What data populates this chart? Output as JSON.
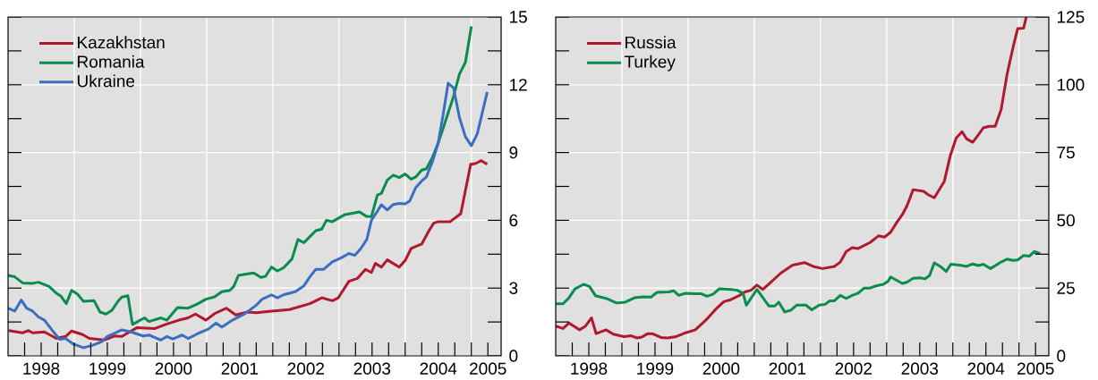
{
  "chart_data": [
    {
      "type": "line",
      "legend": "top left",
      "grid": true,
      "xlim": [
        1998,
        2005.45
      ],
      "ylim": [
        0,
        15
      ],
      "xticks": [
        {
          "value": 1998.25,
          "label": null
        },
        {
          "value": 1998.5,
          "label": "1998"
        },
        {
          "value": 1998.75,
          "label": null
        },
        {
          "value": 1999,
          "label": null
        },
        {
          "value": 1999.25,
          "label": null
        },
        {
          "value": 1999.5,
          "label": "1999"
        },
        {
          "value": 1999.75,
          "label": null
        },
        {
          "value": 2000,
          "label": null
        },
        {
          "value": 2000.25,
          "label": null
        },
        {
          "value": 2000.5,
          "label": "2000"
        },
        {
          "value": 2000.75,
          "label": null
        },
        {
          "value": 2001,
          "label": null
        },
        {
          "value": 2001.25,
          "label": null
        },
        {
          "value": 2001.5,
          "label": "2001"
        },
        {
          "value": 2001.75,
          "label": null
        },
        {
          "value": 2002,
          "label": null
        },
        {
          "value": 2002.25,
          "label": null
        },
        {
          "value": 2002.5,
          "label": "2002"
        },
        {
          "value": 2002.75,
          "label": null
        },
        {
          "value": 2003,
          "label": null
        },
        {
          "value": 2003.25,
          "label": null
        },
        {
          "value": 2003.5,
          "label": "2003"
        },
        {
          "value": 2003.75,
          "label": null
        },
        {
          "value": 2004,
          "label": null
        },
        {
          "value": 2004.25,
          "label": null
        },
        {
          "value": 2004.5,
          "label": "2004"
        },
        {
          "value": 2004.75,
          "label": null
        },
        {
          "value": 2005,
          "label": null
        },
        {
          "value": 2005.25,
          "label": "2005"
        }
      ],
      "yticks": [
        0,
        {
          "value": 1.5,
          "label": null
        },
        3,
        {
          "value": 4.5,
          "label": null
        },
        6,
        {
          "value": 7.5,
          "label": null
        },
        9,
        {
          "value": 10.5,
          "label": null
        },
        12,
        {
          "value": 13.5,
          "label": null
        },
        15
      ],
      "series": [
        {
          "name": "Kazakhstan",
          "color": "#b0182e",
          "x": [
            1998.01,
            1998.22,
            1998.31,
            1998.37,
            1998.55,
            1998.73,
            1998.87,
            1998.96,
            1999.12,
            1999.23,
            1999.45,
            1999.61,
            1999.72,
            1999.95,
            2000.22,
            2000.38,
            2000.58,
            2000.72,
            2000.83,
            2000.99,
            2001.12,
            2001.3,
            2001.44,
            2001.62,
            2001.75,
            2001.98,
            2002.25,
            2002.56,
            2002.74,
            2002.9,
            2002.99,
            2003.15,
            2003.28,
            2003.4,
            2003.49,
            2003.55,
            2003.64,
            2003.73,
            2003.91,
            2004.0,
            2004.09,
            2004.25,
            2004.36,
            2004.43,
            2004.5,
            2004.68,
            2004.84,
            2004.99,
            2005.06,
            2005.15,
            2005.24
          ],
          "values": [
            1.12,
            1.02,
            1.12,
            1.02,
            1.06,
            0.77,
            0.86,
            1.1,
            0.95,
            0.77,
            0.7,
            0.88,
            0.86,
            1.25,
            1.21,
            1.39,
            1.58,
            1.68,
            1.85,
            1.58,
            1.87,
            2.11,
            1.81,
            1.94,
            1.91,
            1.98,
            2.05,
            2.31,
            2.57,
            2.44,
            2.57,
            3.3,
            3.43,
            3.83,
            3.69,
            4.09,
            3.93,
            4.25,
            3.93,
            4.22,
            4.75,
            4.95,
            5.54,
            5.87,
            5.94,
            5.94,
            6.29,
            8.48,
            8.51,
            8.64,
            8.48
          ]
        },
        {
          "name": "Romania",
          "color": "#0a8c4f",
          "x": [
            1998.0,
            1998.1,
            1998.22,
            1998.37,
            1998.46,
            1998.62,
            1998.73,
            1998.8,
            1998.88,
            1998.96,
            1999.05,
            1999.14,
            1999.3,
            1999.39,
            1999.48,
            1999.57,
            1999.66,
            1999.72,
            1999.81,
            1999.88,
            2000.06,
            2000.13,
            2000.31,
            2000.4,
            2000.56,
            2000.72,
            2000.85,
            2000.99,
            2001.12,
            2001.23,
            2001.35,
            2001.41,
            2001.48,
            2001.71,
            2001.82,
            2001.89,
            2001.98,
            2002.07,
            2002.16,
            2002.29,
            2002.38,
            2002.47,
            2002.65,
            2002.74,
            2002.81,
            2002.9,
            2003.08,
            2003.31,
            2003.42,
            2003.49,
            2003.58,
            2003.64,
            2003.73,
            2003.82,
            2003.91,
            2004.0,
            2004.09,
            2004.16,
            2004.25,
            2004.32,
            2004.41,
            2004.5,
            2004.59,
            2004.73,
            2004.82,
            2004.91,
            2005.0
          ],
          "values": [
            3.56,
            3.5,
            3.23,
            3.21,
            3.26,
            3.07,
            2.77,
            2.64,
            2.31,
            2.9,
            2.73,
            2.41,
            2.44,
            1.94,
            1.85,
            2.02,
            2.41,
            2.6,
            2.66,
            1.39,
            1.68,
            1.52,
            1.68,
            1.58,
            2.14,
            2.11,
            2.28,
            2.51,
            2.61,
            2.84,
            2.9,
            3.07,
            3.56,
            3.67,
            3.47,
            3.52,
            3.93,
            3.76,
            3.89,
            4.29,
            5.15,
            5.01,
            5.54,
            5.61,
            6.0,
            5.94,
            6.24,
            6.37,
            6.17,
            6.16,
            7.12,
            7.19,
            7.78,
            8.0,
            7.89,
            8.05,
            7.82,
            7.92,
            8.22,
            8.28,
            8.77,
            9.43,
            10.22,
            11.48,
            12.47,
            12.99,
            14.58
          ]
        },
        {
          "name": "Ukraine",
          "color": "#3a6fbf",
          "x": [
            1998.0,
            1998.1,
            1998.2,
            1998.28,
            1998.37,
            1998.46,
            1998.55,
            1998.67,
            1998.78,
            1998.87,
            1998.98,
            1999.14,
            1999.27,
            1999.41,
            1999.5,
            1999.72,
            1999.86,
            2000.04,
            2000.13,
            2000.31,
            2000.4,
            2000.49,
            2000.63,
            2000.72,
            2000.85,
            2001.03,
            2001.14,
            2001.23,
            2001.39,
            2001.57,
            2001.75,
            2001.84,
            2001.98,
            2002.07,
            2002.16,
            2002.34,
            2002.47,
            2002.56,
            2002.65,
            2002.77,
            2002.9,
            2003.04,
            2003.15,
            2003.24,
            2003.33,
            2003.42,
            2003.49,
            2003.58,
            2003.64,
            2003.73,
            2003.82,
            2003.91,
            2004.0,
            2004.07,
            2004.16,
            2004.25,
            2004.32,
            2004.41,
            2004.5,
            2004.57,
            2004.65,
            2004.73,
            2004.82,
            2004.91,
            2005.0,
            2005.09,
            2005.24
          ],
          "values": [
            2.11,
            1.98,
            2.47,
            2.11,
            1.98,
            1.72,
            1.58,
            1.12,
            0.73,
            0.77,
            0.53,
            0.36,
            0.46,
            0.62,
            0.86,
            1.15,
            1.06,
            0.88,
            0.92,
            0.7,
            0.86,
            0.75,
            0.92,
            0.77,
            0.96,
            1.19,
            1.45,
            1.28,
            1.58,
            1.85,
            2.24,
            2.51,
            2.7,
            2.57,
            2.7,
            2.84,
            3.1,
            3.5,
            3.83,
            3.83,
            4.16,
            4.35,
            4.53,
            4.45,
            4.75,
            5.15,
            6.0,
            6.4,
            6.69,
            6.46,
            6.7,
            6.75,
            6.73,
            6.86,
            7.45,
            7.74,
            7.92,
            8.58,
            9.43,
            10.62,
            12.07,
            11.87,
            10.55,
            9.7,
            9.3,
            9.83,
            11.68
          ]
        }
      ]
    },
    {
      "type": "line",
      "legend": "top left",
      "grid": true,
      "xlim": [
        1998,
        2005.45
      ],
      "ylim": [
        0,
        125
      ],
      "xticks": [
        {
          "value": 1998.25,
          "label": null
        },
        {
          "value": 1998.5,
          "label": "1998"
        },
        {
          "value": 1998.75,
          "label": null
        },
        {
          "value": 1999,
          "label": null
        },
        {
          "value": 1999.25,
          "label": null
        },
        {
          "value": 1999.5,
          "label": "1999"
        },
        {
          "value": 1999.75,
          "label": null
        },
        {
          "value": 2000,
          "label": null
        },
        {
          "value": 2000.25,
          "label": null
        },
        {
          "value": 2000.5,
          "label": "2000"
        },
        {
          "value": 2000.75,
          "label": null
        },
        {
          "value": 2001,
          "label": null
        },
        {
          "value": 2001.25,
          "label": null
        },
        {
          "value": 2001.5,
          "label": "2001"
        },
        {
          "value": 2001.75,
          "label": null
        },
        {
          "value": 2002,
          "label": null
        },
        {
          "value": 2002.25,
          "label": null
        },
        {
          "value": 2002.5,
          "label": "2002"
        },
        {
          "value": 2002.75,
          "label": null
        },
        {
          "value": 2003,
          "label": null
        },
        {
          "value": 2003.25,
          "label": null
        },
        {
          "value": 2003.5,
          "label": "2003"
        },
        {
          "value": 2003.75,
          "label": null
        },
        {
          "value": 2004,
          "label": null
        },
        {
          "value": 2004.25,
          "label": null
        },
        {
          "value": 2004.5,
          "label": "2004"
        },
        {
          "value": 2004.75,
          "label": null
        },
        {
          "value": 2005,
          "label": null
        },
        {
          "value": 2005.25,
          "label": "2005"
        }
      ],
      "yticks": [
        0,
        {
          "value": 12.5,
          "label": null
        },
        25,
        {
          "value": 37.5,
          "label": null
        },
        50,
        {
          "value": 62.5,
          "label": null
        },
        75,
        {
          "value": 87.5,
          "label": null
        },
        100,
        {
          "value": 112.5,
          "label": null
        },
        125
      ],
      "series": [
        {
          "name": "Russia",
          "color": "#b0182e",
          "x": [
            1998.0,
            1998.11,
            1998.2,
            1998.36,
            1998.45,
            1998.54,
            1998.61,
            1998.76,
            1998.87,
            1999.03,
            1999.14,
            1999.23,
            1999.3,
            1999.39,
            1999.46,
            1999.59,
            1999.69,
            1999.82,
            1999.96,
            2000.11,
            2000.27,
            2000.41,
            2000.54,
            2000.63,
            2000.77,
            2000.86,
            2000.95,
            2001.04,
            2001.13,
            2001.24,
            2001.4,
            2001.58,
            2001.76,
            2001.89,
            2002.03,
            2002.21,
            2002.3,
            2002.39,
            2002.48,
            2002.57,
            2002.75,
            2002.88,
            2002.97,
            2003.06,
            2003.15,
            2003.24,
            2003.31,
            2003.4,
            2003.56,
            2003.63,
            2003.72,
            2003.87,
            2003.96,
            2004.05,
            2004.14,
            2004.21,
            2004.3,
            2004.39,
            2004.46,
            2004.55,
            2004.64,
            2004.73,
            2004.82,
            2004.91,
            2004.98,
            2005.07,
            2005.11
          ],
          "values": [
            11.0,
            10.1,
            12.1,
            9.6,
            11.0,
            14.0,
            8.2,
            9.6,
            8.0,
            7.1,
            7.4,
            6.6,
            6.9,
            8.2,
            8.2,
            6.8,
            6.6,
            7.1,
            8.5,
            9.6,
            13.2,
            17.0,
            20.0,
            20.6,
            22.2,
            23.6,
            24.2,
            26.1,
            24.5,
            26.9,
            30.5,
            33.5,
            34.4,
            33.0,
            32.2,
            33.0,
            34.6,
            38.5,
            39.9,
            39.6,
            41.8,
            44.3,
            43.8,
            45.6,
            49.1,
            52.2,
            55.5,
            61.3,
            60.7,
            59.4,
            58.3,
            64.3,
            73.7,
            80.3,
            82.7,
            80.0,
            78.8,
            81.7,
            84.1,
            84.7,
            84.7,
            90.9,
            103.9,
            113.8,
            120.7,
            120.9,
            125
          ]
        },
        {
          "name": "Turkey",
          "color": "#0a8c4f",
          "x": [
            1998.0,
            1998.11,
            1998.2,
            1998.29,
            1998.42,
            1998.51,
            1998.6,
            1998.76,
            1998.92,
            1999.05,
            1999.19,
            1999.32,
            1999.44,
            1999.53,
            1999.71,
            1999.78,
            1999.86,
            1999.96,
            2000.09,
            2000.2,
            2000.29,
            2000.38,
            2000.47,
            2000.65,
            2000.74,
            2000.83,
            2000.88,
            2001.04,
            2001.22,
            2001.31,
            2001.37,
            2001.46,
            2001.55,
            2001.64,
            2001.78,
            2001.87,
            2001.98,
            2002.07,
            2002.14,
            2002.21,
            2002.3,
            2002.39,
            2002.48,
            2002.57,
            2002.66,
            2002.75,
            2002.84,
            2002.95,
            2003.02,
            2003.06,
            2003.2,
            2003.24,
            2003.31,
            2003.4,
            2003.51,
            2003.58,
            2003.65,
            2003.72,
            2003.81,
            2003.9,
            2003.97,
            2004.1,
            2004.21,
            2004.3,
            2004.39,
            2004.46,
            2004.57,
            2004.73,
            2004.82,
            2004.91,
            2004.98,
            2005.07,
            2005.16,
            2005.23,
            2005.32
          ],
          "values": [
            19.2,
            19.2,
            21.4,
            24.7,
            26.4,
            25.6,
            22.2,
            21.2,
            19.5,
            19.8,
            21.4,
            21.8,
            21.7,
            23.4,
            23.6,
            24.0,
            22.3,
            23.1,
            22.9,
            22.9,
            22.0,
            22.8,
            24.7,
            24.5,
            24.2,
            23.1,
            18.7,
            24.5,
            18.4,
            18.4,
            19.8,
            16.2,
            16.8,
            18.7,
            18.7,
            17.0,
            18.7,
            19.0,
            20.3,
            20.3,
            22.3,
            21.2,
            22.3,
            23.1,
            25.0,
            25.0,
            25.8,
            26.4,
            27.5,
            29.1,
            27.2,
            26.7,
            27.2,
            28.6,
            28.8,
            28.4,
            29.7,
            34.3,
            33.0,
            31.1,
            33.8,
            33.5,
            33.0,
            33.9,
            33.3,
            33.8,
            32.2,
            34.6,
            35.7,
            35.2,
            35.4,
            37.0,
            36.8,
            38.5,
            37.7
          ]
        }
      ]
    }
  ]
}
